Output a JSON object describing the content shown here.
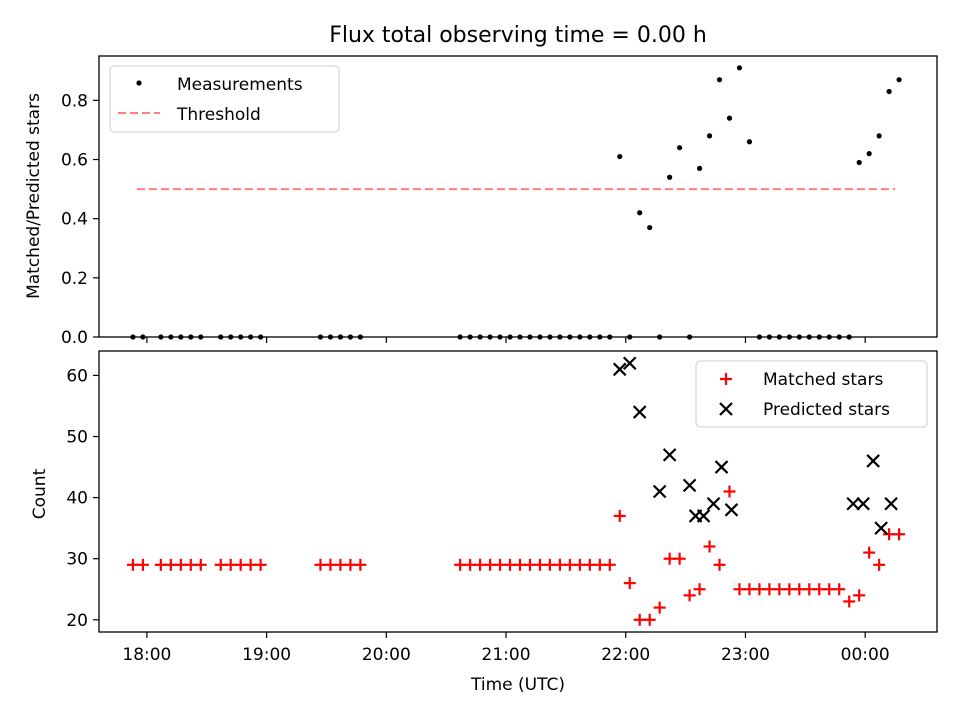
{
  "title": "Flux total observing time = 0.00 h",
  "colors": {
    "measurement": "#000000",
    "threshold": "#ff7f7f",
    "matched": "#ff0000",
    "predicted": "#000000"
  },
  "chart_data": [
    {
      "type": "scatter",
      "title": "Flux total observing time = 0.00 h",
      "ylabel": "Matched/Predicted stars",
      "xlabel": "",
      "xlim": [
        "17:36",
        "00:36"
      ],
      "ylim": [
        0,
        0.95
      ],
      "x_ticks": [
        "18:00",
        "19:00",
        "20:00",
        "21:00",
        "22:00",
        "23:00",
        "00:00"
      ],
      "y_ticks": [
        "0.0",
        "0.2",
        "0.4",
        "0.6",
        "0.8"
      ],
      "legend": {
        "position": "top-left",
        "entries": [
          "Measurements",
          "Threshold"
        ]
      },
      "threshold": {
        "name": "Threshold",
        "y": 0.5,
        "x_start": "17:55",
        "x_end": "00:15"
      },
      "series": [
        {
          "name": "Measurements",
          "x": [
            "17:53",
            "17:58",
            "18:07",
            "18:12",
            "18:17",
            "18:22",
            "18:27",
            "18:37",
            "18:42",
            "18:47",
            "18:52",
            "18:57",
            "19:27",
            "19:32",
            "19:37",
            "19:42",
            "19:47",
            "20:37",
            "20:42",
            "20:47",
            "20:52",
            "20:57",
            "21:02",
            "21:07",
            "21:12",
            "21:17",
            "21:22",
            "21:27",
            "21:32",
            "21:37",
            "21:42",
            "21:47",
            "21:52",
            "21:57",
            "22:02",
            "22:07",
            "22:12",
            "22:17",
            "22:22",
            "22:27",
            "22:32",
            "22:37",
            "22:42",
            "22:47",
            "22:52",
            "22:57",
            "23:02",
            "23:07",
            "23:12",
            "23:17",
            "23:22",
            "23:27",
            "23:32",
            "23:37",
            "23:42",
            "23:47",
            "23:52",
            "23:57",
            "00:02",
            "00:07",
            "00:12",
            "00:17"
          ],
          "y": [
            0,
            0,
            0,
            0,
            0,
            0,
            0,
            0,
            0,
            0,
            0,
            0,
            0,
            0,
            0,
            0,
            0,
            0,
            0,
            0,
            0,
            0,
            0,
            0,
            0,
            0,
            0,
            0,
            0,
            0,
            0,
            0,
            0,
            0.61,
            0,
            0.42,
            0.37,
            0,
            0.54,
            0.64,
            0,
            0.57,
            0.68,
            0.87,
            0.74,
            0.91,
            0.66,
            0,
            0,
            0,
            0,
            0,
            0,
            0,
            0,
            0,
            0,
            0.59,
            0.62,
            0.68,
            0.83,
            0.87
          ]
        }
      ]
    },
    {
      "type": "scatter",
      "title": "",
      "xlabel": "Time (UTC)",
      "ylabel": "Count",
      "xlim": [
        "17:36",
        "00:36"
      ],
      "ylim": [
        18,
        64
      ],
      "x_ticks": [
        "18:00",
        "19:00",
        "20:00",
        "21:00",
        "22:00",
        "23:00",
        "00:00"
      ],
      "y_ticks": [
        "20",
        "30",
        "40",
        "50",
        "60"
      ],
      "legend": {
        "position": "top-right",
        "entries": [
          "Matched stars",
          "Predicted stars"
        ]
      },
      "series": [
        {
          "name": "Matched stars",
          "x": [
            "17:53",
            "17:58",
            "18:07",
            "18:12",
            "18:17",
            "18:22",
            "18:27",
            "18:37",
            "18:42",
            "18:47",
            "18:52",
            "18:57",
            "19:27",
            "19:32",
            "19:37",
            "19:42",
            "19:47",
            "20:37",
            "20:42",
            "20:47",
            "20:52",
            "20:57",
            "21:02",
            "21:07",
            "21:12",
            "21:17",
            "21:22",
            "21:27",
            "21:32",
            "21:37",
            "21:42",
            "21:47",
            "21:52",
            "21:57",
            "22:02",
            "22:07",
            "22:12",
            "22:17",
            "22:22",
            "22:27",
            "22:32",
            "22:37",
            "22:42",
            "22:47",
            "22:52",
            "22:57",
            "23:02",
            "23:07",
            "23:12",
            "23:17",
            "23:22",
            "23:27",
            "23:32",
            "23:37",
            "23:42",
            "23:47",
            "23:52",
            "23:57",
            "00:02",
            "00:07",
            "00:12",
            "00:17"
          ],
          "y": [
            29,
            29,
            29,
            29,
            29,
            29,
            29,
            29,
            29,
            29,
            29,
            29,
            29,
            29,
            29,
            29,
            29,
            29,
            29,
            29,
            29,
            29,
            29,
            29,
            29,
            29,
            29,
            29,
            29,
            29,
            29,
            29,
            29,
            37,
            26,
            20,
            20,
            22,
            30,
            30,
            24,
            25,
            32,
            29,
            41,
            25,
            25,
            25,
            25,
            25,
            25,
            25,
            25,
            25,
            25,
            25,
            23,
            24,
            31,
            29,
            34,
            34
          ]
        },
        {
          "name": "Predicted stars",
          "x": [
            "21:57",
            "22:02",
            "22:07",
            "22:17",
            "22:22",
            "22:32",
            "22:35",
            "22:39",
            "22:44",
            "22:48",
            "22:53",
            "23:54",
            "23:59",
            "00:04",
            "00:08",
            "00:13"
          ],
          "y": [
            61,
            62,
            54,
            41,
            47,
            42,
            37,
            37,
            39,
            45,
            38,
            39,
            39,
            46,
            35,
            39
          ]
        }
      ]
    }
  ]
}
